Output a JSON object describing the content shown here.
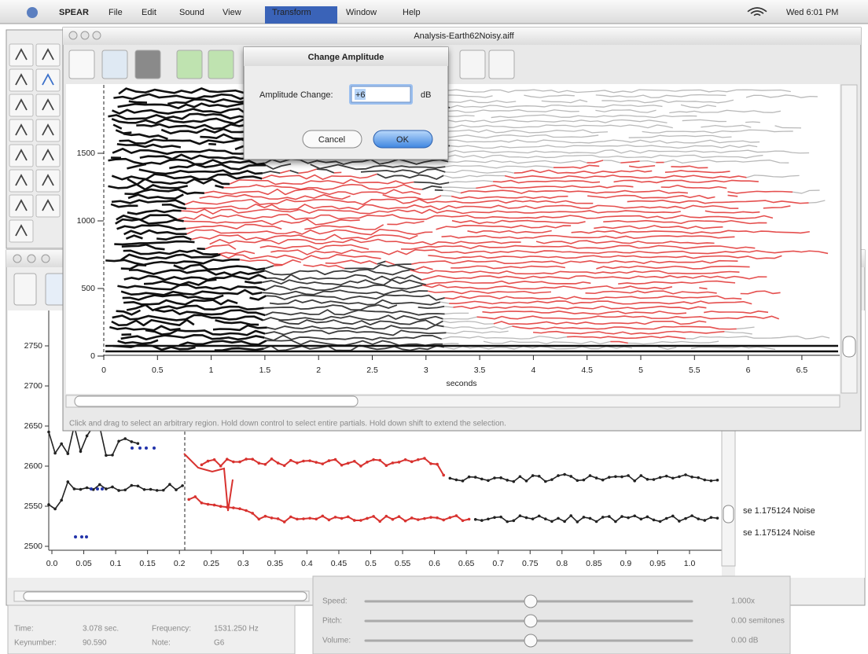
{
  "menu_bar": {
    "app": "SPEAR",
    "items": [
      "File",
      "Edit",
      "Sound",
      "View",
      "Transform",
      "Window",
      "Help"
    ],
    "clock": "Wed 6:01 PM"
  },
  "analysis_window": {
    "title": "Analysis-Earth62Noisy.aiff",
    "y_ticks": [
      "1500",
      "1000",
      "500",
      "0"
    ],
    "x_ticks": [
      "0",
      "0.5",
      "1",
      "1.5",
      "2",
      "2.5",
      "3",
      "3.5",
      "4",
      "4.5",
      "5",
      "5.5",
      "6",
      "6.5"
    ],
    "x_label": "seconds",
    "status": "Click and drag to select an arbitrary region. Hold down control to select entire partials. Hold down shift to extend the selection."
  },
  "dialog": {
    "title": "Change Amplitude",
    "label": "Amplitude Change:",
    "input": "+6",
    "unit": "dB",
    "cancel": "Cancel",
    "ok": "OK"
  },
  "detail_view": {
    "y_ticks": [
      "2750",
      "2700",
      "2650",
      "2600",
      "2550",
      "2500"
    ],
    "x_ticks": [
      "0.0",
      "0.05",
      "0.1",
      "0.15",
      "0.2",
      "0.25",
      "0.3",
      "0.35",
      "0.4",
      "0.45",
      "0.5",
      "0.55",
      "0.6",
      "0.65",
      "0.7",
      "0.75",
      "0.8",
      "0.85",
      "0.9",
      "0.95",
      "1.0"
    ],
    "partial_info": [
      "se 1.175124  Noise",
      "se 1.175124  Noise"
    ]
  },
  "info_panel": {
    "rows": [
      [
        "Time:",
        "3.078 sec.",
        "Frequency:",
        "1531.250 Hz"
      ],
      [
        "Keynumber:",
        "90.590",
        "Note:",
        "G6"
      ]
    ]
  },
  "playback": {
    "rows": [
      [
        "Speed:",
        "1.000x"
      ],
      [
        "Pitch:",
        "0.00 semitones"
      ],
      [
        "Volume:",
        "0.00 dB"
      ]
    ]
  }
}
